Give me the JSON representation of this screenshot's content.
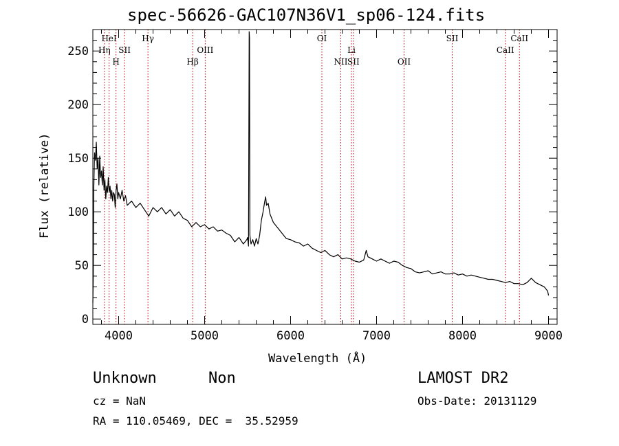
{
  "chart_data": {
    "type": "line",
    "title": "spec-56626-GAC107N36V1_sp06-124.fits",
    "xlabel": "Wavelength (Å)",
    "ylabel": "Flux (relative)",
    "xlim": [
      3700,
      9100
    ],
    "ylim": [
      -5,
      270
    ],
    "x_ticks": [
      4000,
      5000,
      6000,
      7000,
      8000,
      9000
    ],
    "y_ticks": [
      0,
      50,
      100,
      150,
      200,
      250
    ],
    "grid": false,
    "line_markers": [
      {
        "label": "HeI",
        "x": 3889,
        "row": 0
      },
      {
        "label": "Hη",
        "x": 3835,
        "row": 1
      },
      {
        "label": "SII",
        "x": 4069,
        "row": 1
      },
      {
        "label": "H",
        "x": 3969,
        "row": 2
      },
      {
        "label": "Hγ",
        "x": 4341,
        "row": 0
      },
      {
        "label": "OIII",
        "x": 5007,
        "row": 1
      },
      {
        "label": "Hβ",
        "x": 4861,
        "row": 2
      },
      {
        "label": "OI",
        "x": 6364,
        "row": 0
      },
      {
        "label": "Li",
        "x": 6708,
        "row": 1
      },
      {
        "label": "NII",
        "x": 6584,
        "row": 2
      },
      {
        "label": "SII",
        "x": 6731,
        "row": 2
      },
      {
        "label": "OII",
        "x": 7320,
        "row": 2
      },
      {
        "label": "SII",
        "x": 7880,
        "row": 0
      },
      {
        "label": "CaII",
        "x": 8662,
        "row": 0
      },
      {
        "label": "CaII",
        "x": 8498,
        "row": 1
      }
    ],
    "series": [
      {
        "points": [
          [
            3700,
            15
          ],
          [
            3705,
            40
          ],
          [
            3710,
            120
          ],
          [
            3720,
            155
          ],
          [
            3730,
            148
          ],
          [
            3740,
            165
          ],
          [
            3750,
            140
          ],
          [
            3760,
            150
          ],
          [
            3770,
            125
          ],
          [
            3780,
            152
          ],
          [
            3790,
            132
          ],
          [
            3800,
            138
          ],
          [
            3810,
            125
          ],
          [
            3820,
            142
          ],
          [
            3830,
            120
          ],
          [
            3840,
            130
          ],
          [
            3850,
            112
          ],
          [
            3860,
            124
          ],
          [
            3870,
            118
          ],
          [
            3880,
            132
          ],
          [
            3890,
            118
          ],
          [
            3900,
            124
          ],
          [
            3910,
            112
          ],
          [
            3920,
            120
          ],
          [
            3930,
            110
          ],
          [
            3940,
            118
          ],
          [
            3950,
            116
          ],
          [
            3960,
            104
          ],
          [
            3970,
            120
          ],
          [
            3980,
            126
          ],
          [
            3990,
            112
          ],
          [
            4000,
            118
          ],
          [
            4020,
            112
          ],
          [
            4040,
            120
          ],
          [
            4060,
            110
          ],
          [
            4080,
            115
          ],
          [
            4100,
            106
          ],
          [
            4150,
            110
          ],
          [
            4200,
            104
          ],
          [
            4250,
            108
          ],
          [
            4300,
            102
          ],
          [
            4350,
            96
          ],
          [
            4400,
            104
          ],
          [
            4450,
            100
          ],
          [
            4500,
            104
          ],
          [
            4550,
            98
          ],
          [
            4600,
            102
          ],
          [
            4650,
            96
          ],
          [
            4700,
            100
          ],
          [
            4750,
            94
          ],
          [
            4800,
            92
          ],
          [
            4850,
            86
          ],
          [
            4900,
            90
          ],
          [
            4950,
            86
          ],
          [
            5000,
            88
          ],
          [
            5050,
            84
          ],
          [
            5100,
            86
          ],
          [
            5150,
            82
          ],
          [
            5200,
            83
          ],
          [
            5250,
            80
          ],
          [
            5300,
            78
          ],
          [
            5350,
            72
          ],
          [
            5400,
            76
          ],
          [
            5450,
            70
          ],
          [
            5490,
            74
          ],
          [
            5500,
            76
          ],
          [
            5510,
            68
          ],
          [
            5518,
            268
          ],
          [
            5522,
            262
          ],
          [
            5526,
            78
          ],
          [
            5540,
            70
          ],
          [
            5560,
            74
          ],
          [
            5580,
            68
          ],
          [
            5600,
            75
          ],
          [
            5620,
            70
          ],
          [
            5640,
            78
          ],
          [
            5660,
            92
          ],
          [
            5680,
            100
          ],
          [
            5700,
            110
          ],
          [
            5710,
            114
          ],
          [
            5720,
            106
          ],
          [
            5740,
            108
          ],
          [
            5760,
            98
          ],
          [
            5780,
            94
          ],
          [
            5800,
            90
          ],
          [
            5850,
            85
          ],
          [
            5900,
            80
          ],
          [
            5950,
            75
          ],
          [
            6000,
            74
          ],
          [
            6050,
            72
          ],
          [
            6100,
            71
          ],
          [
            6150,
            68
          ],
          [
            6200,
            70
          ],
          [
            6250,
            66
          ],
          [
            6300,
            64
          ],
          [
            6350,
            62
          ],
          [
            6400,
            64
          ],
          [
            6450,
            60
          ],
          [
            6500,
            58
          ],
          [
            6550,
            60
          ],
          [
            6600,
            56
          ],
          [
            6650,
            57
          ],
          [
            6700,
            56
          ],
          [
            6750,
            54
          ],
          [
            6800,
            53
          ],
          [
            6850,
            55
          ],
          [
            6880,
            64
          ],
          [
            6900,
            58
          ],
          [
            6950,
            56
          ],
          [
            7000,
            54
          ],
          [
            7050,
            56
          ],
          [
            7100,
            54
          ],
          [
            7150,
            52
          ],
          [
            7200,
            54
          ],
          [
            7250,
            53
          ],
          [
            7300,
            50
          ],
          [
            7350,
            48
          ],
          [
            7400,
            47
          ],
          [
            7450,
            44
          ],
          [
            7500,
            43
          ],
          [
            7550,
            44
          ],
          [
            7600,
            45
          ],
          [
            7650,
            42
          ],
          [
            7700,
            43
          ],
          [
            7750,
            44
          ],
          [
            7800,
            42
          ],
          [
            7850,
            42
          ],
          [
            7900,
            43
          ],
          [
            7950,
            41
          ],
          [
            8000,
            42
          ],
          [
            8050,
            40
          ],
          [
            8100,
            41
          ],
          [
            8150,
            40
          ],
          [
            8200,
            39
          ],
          [
            8250,
            38
          ],
          [
            8300,
            37
          ],
          [
            8350,
            37
          ],
          [
            8400,
            36
          ],
          [
            8450,
            35
          ],
          [
            8500,
            34
          ],
          [
            8550,
            35
          ],
          [
            8600,
            33
          ],
          [
            8650,
            33
          ],
          [
            8700,
            32
          ],
          [
            8750,
            34
          ],
          [
            8800,
            38
          ],
          [
            8850,
            34
          ],
          [
            8900,
            32
          ],
          [
            8950,
            30
          ],
          [
            8990,
            26
          ],
          [
            9000,
            22
          ]
        ]
      }
    ]
  },
  "footer": {
    "object_class": "Unknown",
    "subclass": "Non",
    "survey": "LAMOST DR2",
    "redshift": "cz = NaN",
    "obs_date": "Obs-Date: 20131129",
    "coords": "RA = 110.05469, DEC =  35.52959"
  }
}
